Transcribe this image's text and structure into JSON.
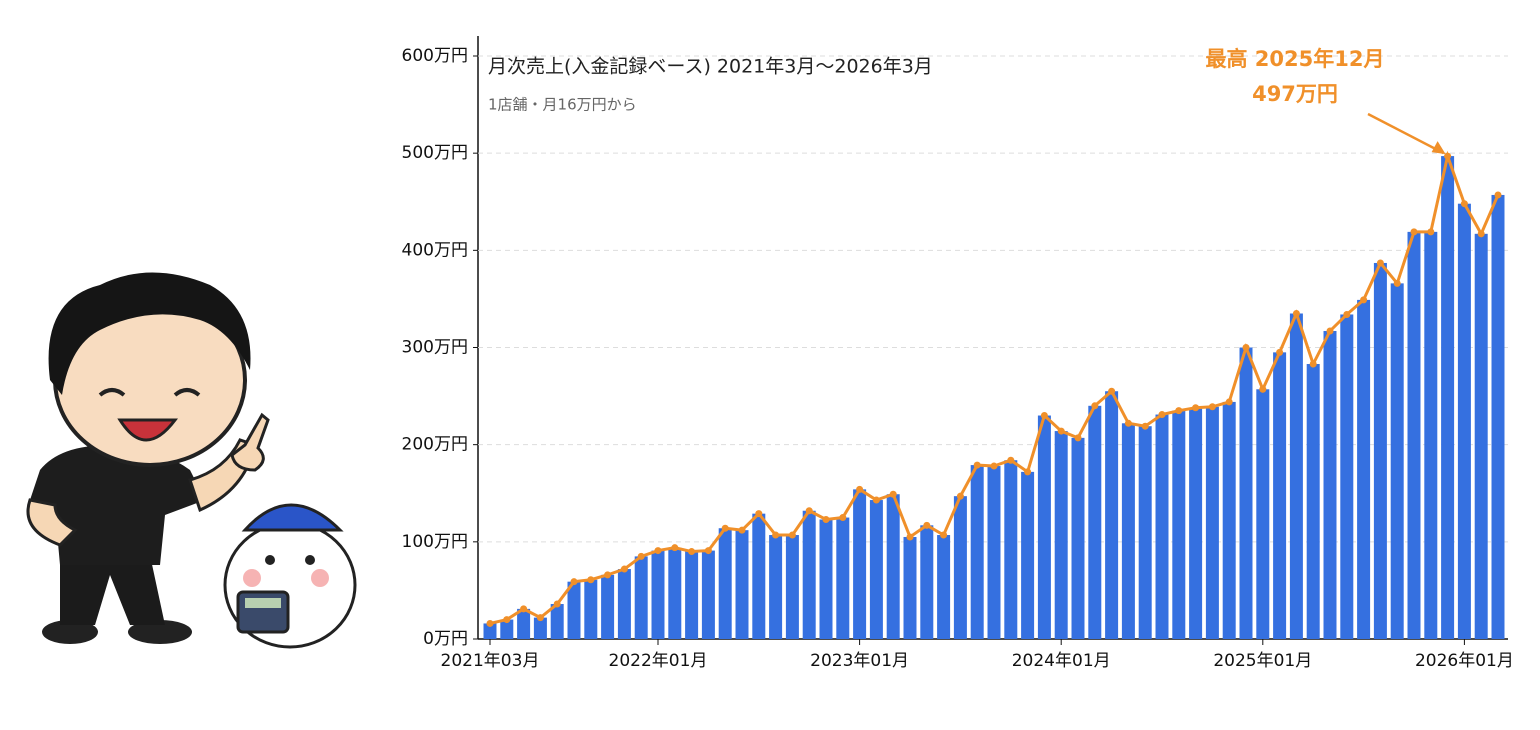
{
  "chart_data": {
    "type": "combo",
    "title": "月次売上(入金記録ベース) 2021年3月〜2026年3月",
    "subtitle": "1店舗・月16万円から",
    "annotation": {
      "lines": [
        "最高 2025年12月",
        "497万円"
      ],
      "index": 57
    },
    "categories": [
      "2021年03月",
      null,
      null,
      null,
      null,
      null,
      null,
      null,
      null,
      null,
      "2022年01月",
      null,
      null,
      null,
      null,
      null,
      null,
      null,
      null,
      null,
      null,
      null,
      "2023年01月",
      null,
      null,
      null,
      null,
      null,
      null,
      null,
      null,
      null,
      null,
      null,
      "2024年01月",
      null,
      null,
      null,
      null,
      null,
      null,
      null,
      null,
      null,
      null,
      null,
      "2025年01月",
      null,
      null,
      null,
      null,
      null,
      null,
      null,
      null,
      null,
      null,
      null,
      "2026年01月",
      null,
      null
    ],
    "values": [
      16,
      20,
      31,
      22,
      36,
      59,
      61,
      66,
      72,
      85,
      91,
      94,
      90,
      91,
      114,
      112,
      129,
      107,
      107,
      132,
      123,
      125,
      154,
      143,
      149,
      105,
      117,
      107,
      147,
      179,
      178,
      184,
      172,
      230,
      214,
      207,
      240,
      255,
      222,
      219,
      231,
      235,
      238,
      239,
      244,
      300,
      257,
      295,
      335,
      283,
      317,
      334,
      349,
      387,
      366,
      419,
      419,
      497,
      448,
      417,
      457
    ],
    "bar_color": "#3570e0",
    "line_color": "#f0902a",
    "ylim": [
      0,
      620
    ],
    "yticks": [
      {
        "value": 0,
        "label": "0万円"
      },
      {
        "value": 100,
        "label": "100万円"
      },
      {
        "value": 200,
        "label": "200万円"
      },
      {
        "value": 300,
        "label": "300万円"
      },
      {
        "value": 400,
        "label": "400万円"
      },
      {
        "value": 500,
        "label": "500万円"
      },
      {
        "value": 600,
        "label": "600万円"
      }
    ],
    "grid": true
  }
}
